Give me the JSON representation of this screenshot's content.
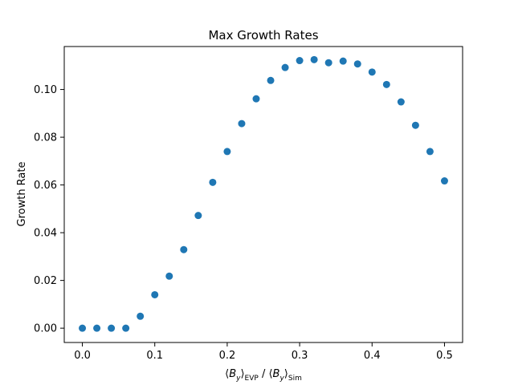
{
  "chart_data": {
    "type": "scatter",
    "title": "Max Growth Rates",
    "xlabel": {
      "open": "⟨",
      "var": "B",
      "sub": "y",
      "close": "⟩",
      "sub_left": "EVP",
      "sep": " / ",
      "sub_right": "Sim"
    },
    "ylabel": "Growth Rate",
    "xlim": [
      -0.025,
      0.525
    ],
    "ylim": [
      -0.006,
      0.118
    ],
    "xticks": [
      0.0,
      0.1,
      0.2,
      0.3,
      0.4,
      0.5
    ],
    "xtick_labels": [
      "0.0",
      "0.1",
      "0.2",
      "0.3",
      "0.4",
      "0.5"
    ],
    "yticks": [
      0.0,
      0.02,
      0.04,
      0.06,
      0.08,
      0.1
    ],
    "ytick_labels": [
      "0.00",
      "0.02",
      "0.04",
      "0.06",
      "0.08",
      "0.10"
    ],
    "grid": false,
    "marker_color": "#1f77b4",
    "series": [
      {
        "x": [
          0.0,
          0.02,
          0.04,
          0.06,
          0.08,
          0.1,
          0.12,
          0.14,
          0.16,
          0.18,
          0.2,
          0.22,
          0.24,
          0.26,
          0.28,
          0.3,
          0.32,
          0.34,
          0.36,
          0.38,
          0.4,
          0.42,
          0.44,
          0.46,
          0.48,
          0.5
        ],
        "y": [
          0.0,
          0.0,
          0.0,
          0.0,
          0.005,
          0.014,
          0.0218,
          0.0329,
          0.0472,
          0.0611,
          0.074,
          0.0857,
          0.0961,
          0.1038,
          0.1092,
          0.1121,
          0.1125,
          0.1112,
          0.1119,
          0.1107,
          0.1073,
          0.1021,
          0.0948,
          0.085,
          0.074,
          0.0617
        ]
      }
    ]
  }
}
